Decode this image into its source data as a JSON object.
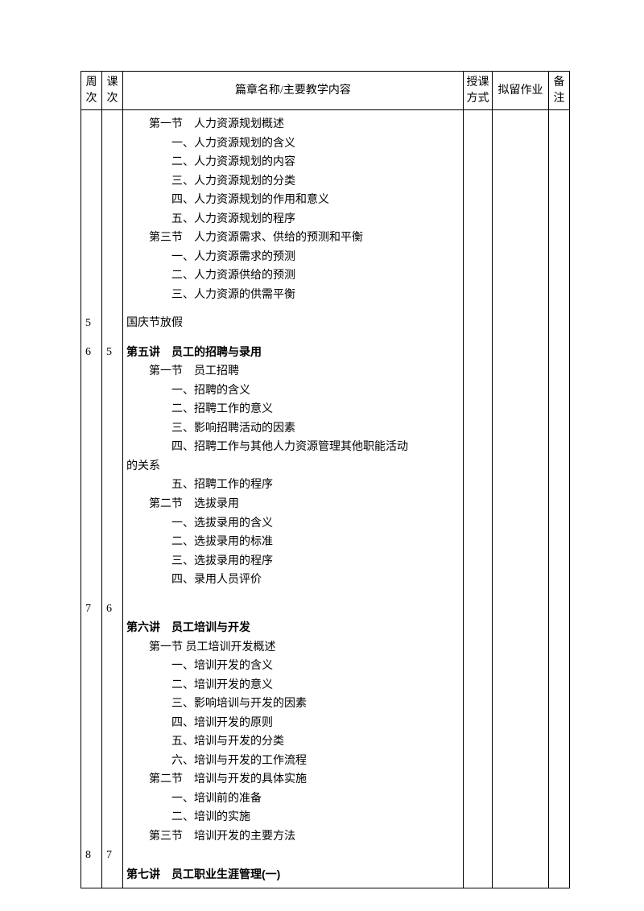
{
  "headers": {
    "week": "周次",
    "lesson": "课次",
    "content": "篇章名称/主要教学内容",
    "method": "授课方式",
    "homework": "拟留作业",
    "note": "备注"
  },
  "rows": [
    {
      "week": "",
      "lesson": "",
      "indent": 1,
      "bold": false,
      "text": "第一节　人力资源规划概述"
    },
    {
      "week": "",
      "lesson": "",
      "indent": 2,
      "bold": false,
      "text": "一、人力资源规划的含义"
    },
    {
      "week": "",
      "lesson": "",
      "indent": 2,
      "bold": false,
      "text": "二、人力资源规划的内容"
    },
    {
      "week": "",
      "lesson": "",
      "indent": 2,
      "bold": false,
      "text": "三、人力资源规划的分类"
    },
    {
      "week": "",
      "lesson": "",
      "indent": 2,
      "bold": false,
      "text": "四、人力资源规划的作用和意义"
    },
    {
      "week": "",
      "lesson": "",
      "indent": 2,
      "bold": false,
      "text": "五、人力资源规划的程序"
    },
    {
      "week": "",
      "lesson": "",
      "indent": 1,
      "bold": false,
      "text": "第三节　人力资源需求、供给的预测和平衡"
    },
    {
      "week": "",
      "lesson": "",
      "indent": 2,
      "bold": false,
      "text": "一、人力资源需求的预测"
    },
    {
      "week": "",
      "lesson": "",
      "indent": 2,
      "bold": false,
      "text": "二、人力资源供给的预测"
    },
    {
      "week": "",
      "lesson": "",
      "indent": 2,
      "bold": false,
      "text": "三、人力资源的供需平衡"
    },
    {
      "gap": true
    },
    {
      "week": "5",
      "lesson": "",
      "indent": 0,
      "bold": false,
      "text": "国庆节放假"
    },
    {
      "gap": true
    },
    {
      "week": "6",
      "lesson": "5",
      "indent": 0,
      "bold": true,
      "text": "第五讲　员工的招聘与录用"
    },
    {
      "week": "",
      "lesson": "",
      "indent": 1,
      "bold": false,
      "text": "第一节　员工招聘"
    },
    {
      "week": "",
      "lesson": "",
      "indent": 2,
      "bold": false,
      "text": "一、招聘的含义"
    },
    {
      "week": "",
      "lesson": "",
      "indent": 2,
      "bold": false,
      "text": "二、招聘工作的意义"
    },
    {
      "week": "",
      "lesson": "",
      "indent": 2,
      "bold": false,
      "text": "三、影响招聘活动的因素"
    },
    {
      "week": "",
      "lesson": "",
      "indent": 2,
      "bold": false,
      "text": "四、招聘工作与其他人力资源管理其他职能活动"
    },
    {
      "week": "",
      "lesson": "",
      "indent": 0,
      "bold": false,
      "text": "的关系"
    },
    {
      "week": "",
      "lesson": "",
      "indent": 2,
      "bold": false,
      "text": "五、招聘工作的程序"
    },
    {
      "week": "",
      "lesson": "",
      "indent": 1,
      "bold": false,
      "text": "第二节　选拔录用"
    },
    {
      "week": "",
      "lesson": "",
      "indent": 2,
      "bold": false,
      "text": "一、选拔录用的含义"
    },
    {
      "week": "",
      "lesson": "",
      "indent": 2,
      "bold": false,
      "text": "二、选拔录用的标准"
    },
    {
      "week": "",
      "lesson": "",
      "indent": 2,
      "bold": false,
      "text": "三、选拔录用的程序"
    },
    {
      "week": "",
      "lesson": "",
      "indent": 2,
      "bold": false,
      "text": "四、录用人员评价"
    },
    {
      "gap": true
    },
    {
      "week": "7",
      "lesson": "6",
      "indent": 0,
      "bold": false,
      "text": ""
    },
    {
      "week": "",
      "lesson": "",
      "indent": 0,
      "bold": true,
      "text": "第六讲　员工培训与开发"
    },
    {
      "week": "",
      "lesson": "",
      "indent": 1,
      "bold": false,
      "text": "第一节 员工培训开发概述"
    },
    {
      "week": "",
      "lesson": "",
      "indent": 2,
      "bold": false,
      "text": "一、培训开发的含义"
    },
    {
      "week": "",
      "lesson": "",
      "indent": 2,
      "bold": false,
      "text": "二、培训开发的意义"
    },
    {
      "week": "",
      "lesson": "",
      "indent": 2,
      "bold": false,
      "text": "三、影响培训与开发的因素"
    },
    {
      "week": "",
      "lesson": "",
      "indent": 2,
      "bold": false,
      "text": "四、培训开发的原则"
    },
    {
      "week": "",
      "lesson": "",
      "indent": 2,
      "bold": false,
      "text": "五、培训与开发的分类"
    },
    {
      "week": "",
      "lesson": "",
      "indent": 2,
      "bold": false,
      "text": "六、培训与开发的工作流程"
    },
    {
      "week": "",
      "lesson": "",
      "indent": 1,
      "bold": false,
      "text": "第二节　培训与开发的具体实施"
    },
    {
      "week": "",
      "lesson": "",
      "indent": 2,
      "bold": false,
      "text": "一、培训前的准备"
    },
    {
      "week": "",
      "lesson": "",
      "indent": 2,
      "bold": false,
      "text": "二、培训的实施"
    },
    {
      "week": "",
      "lesson": "",
      "indent": 1,
      "bold": false,
      "text": "第三节　培训开发的主要方法"
    },
    {
      "week": "8",
      "lesson": "7",
      "indent": 0,
      "bold": false,
      "text": ""
    },
    {
      "week": "",
      "lesson": "",
      "indent": 0,
      "bold": true,
      "text": "第七讲　员工职业生涯管理(一)"
    }
  ]
}
